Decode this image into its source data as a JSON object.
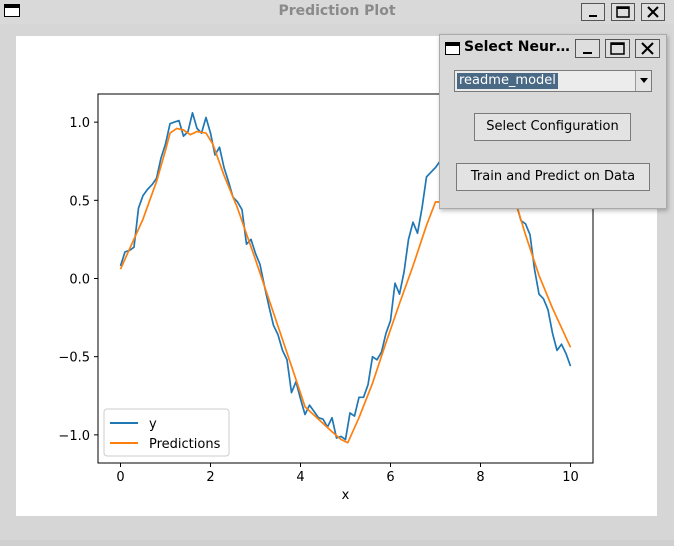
{
  "window": {
    "title": "Prediction Plot",
    "icon": "window-icon"
  },
  "window_buttons": [
    "minimize-icon",
    "maximize-icon",
    "close-icon"
  ],
  "dialog": {
    "title": "Select Neur…",
    "model_select": {
      "value": "readme_model"
    },
    "select_config_label": "Select Configuration",
    "train_predict_label": "Train and Predict on Data"
  },
  "colors": {
    "y": "#1f77b4",
    "predictions": "#ff7f0e",
    "selection": "#4a6984"
  },
  "chart_data": {
    "type": "line",
    "xlabel": "x",
    "ylabel": "",
    "xlim": [
      -0.5,
      10.5
    ],
    "ylim": [
      -1.18,
      1.18
    ],
    "xticks": [
      0,
      2,
      4,
      6,
      8,
      10
    ],
    "yticks": [
      -1.0,
      -0.5,
      0.0,
      0.5,
      1.0
    ],
    "xtick_labels": [
      "0",
      "2",
      "4",
      "6",
      "8",
      "10"
    ],
    "ytick_labels": [
      "−1.0",
      "−0.5",
      "0.0",
      "0.5",
      "1.0"
    ],
    "legend_position": "lower-left",
    "series": [
      {
        "name": "y",
        "x": [
          0,
          0.1,
          0.2,
          0.3,
          0.4,
          0.5,
          0.6,
          0.7,
          0.8,
          0.9,
          1.0,
          1.1,
          1.2,
          1.3,
          1.4,
          1.5,
          1.6,
          1.7,
          1.8,
          1.9,
          2.0,
          2.1,
          2.2,
          2.3,
          2.4,
          2.5,
          2.6,
          2.7,
          2.8,
          2.9,
          3.0,
          3.1,
          3.2,
          3.3,
          3.4,
          3.5,
          3.6,
          3.7,
          3.8,
          3.9,
          4.0,
          4.1,
          4.2,
          4.3,
          4.4,
          4.5,
          4.6,
          4.7,
          4.8,
          4.9,
          5.0,
          5.1,
          5.2,
          5.3,
          5.4,
          5.5,
          5.6,
          5.7,
          5.8,
          5.9,
          6.0,
          6.1,
          6.2,
          6.3,
          6.4,
          6.5,
          6.6,
          6.7,
          6.8,
          6.9,
          7.0,
          7.1,
          8.8,
          8.9,
          9.0,
          9.1,
          9.2,
          9.3,
          9.4,
          9.5,
          9.6,
          9.7,
          9.8,
          9.9,
          10.0
        ],
        "values": [
          0.08,
          0.17,
          0.18,
          0.2,
          0.45,
          0.53,
          0.57,
          0.6,
          0.64,
          0.77,
          0.86,
          0.99,
          1.0,
          1.01,
          0.91,
          0.94,
          1.06,
          0.96,
          0.93,
          1.03,
          0.93,
          0.79,
          0.84,
          0.71,
          0.62,
          0.52,
          0.49,
          0.44,
          0.22,
          0.25,
          0.16,
          0.09,
          -0.05,
          -0.18,
          -0.3,
          -0.36,
          -0.46,
          -0.52,
          -0.73,
          -0.66,
          -0.77,
          -0.87,
          -0.81,
          -0.85,
          -0.89,
          -0.9,
          -0.95,
          -0.89,
          -1.02,
          -1.01,
          -1.03,
          -0.86,
          -0.88,
          -0.76,
          -0.76,
          -0.68,
          -0.5,
          -0.52,
          -0.47,
          -0.35,
          -0.27,
          -0.03,
          -0.1,
          0.04,
          0.25,
          0.36,
          0.29,
          0.45,
          0.65,
          0.68,
          0.71,
          0.75,
          0.47,
          0.37,
          0.35,
          0.28,
          0.06,
          -0.1,
          -0.13,
          -0.2,
          -0.35,
          -0.46,
          -0.42,
          -0.48,
          -0.56
        ]
      },
      {
        "name": "Predictions",
        "x": [
          0,
          0.5,
          0.8,
          1.0,
          1.1,
          1.25,
          1.4,
          1.55,
          1.7,
          1.9,
          2.05,
          2.3,
          2.6,
          3.0,
          3.4,
          3.8,
          4.1,
          4.4,
          4.7,
          4.9,
          5.05,
          5.3,
          5.6,
          5.9,
          6.2,
          6.5,
          6.8,
          7.0,
          8.8,
          9.0,
          9.3,
          9.6,
          10.0
        ],
        "values": [
          0.06,
          0.38,
          0.62,
          0.82,
          0.93,
          0.96,
          0.95,
          0.92,
          0.94,
          0.93,
          0.86,
          0.66,
          0.45,
          0.12,
          -0.22,
          -0.56,
          -0.82,
          -0.9,
          -0.98,
          -1.03,
          -1.05,
          -0.89,
          -0.67,
          -0.41,
          -0.16,
          0.08,
          0.34,
          0.49,
          0.47,
          0.28,
          0.02,
          -0.19,
          -0.44
        ]
      }
    ]
  }
}
